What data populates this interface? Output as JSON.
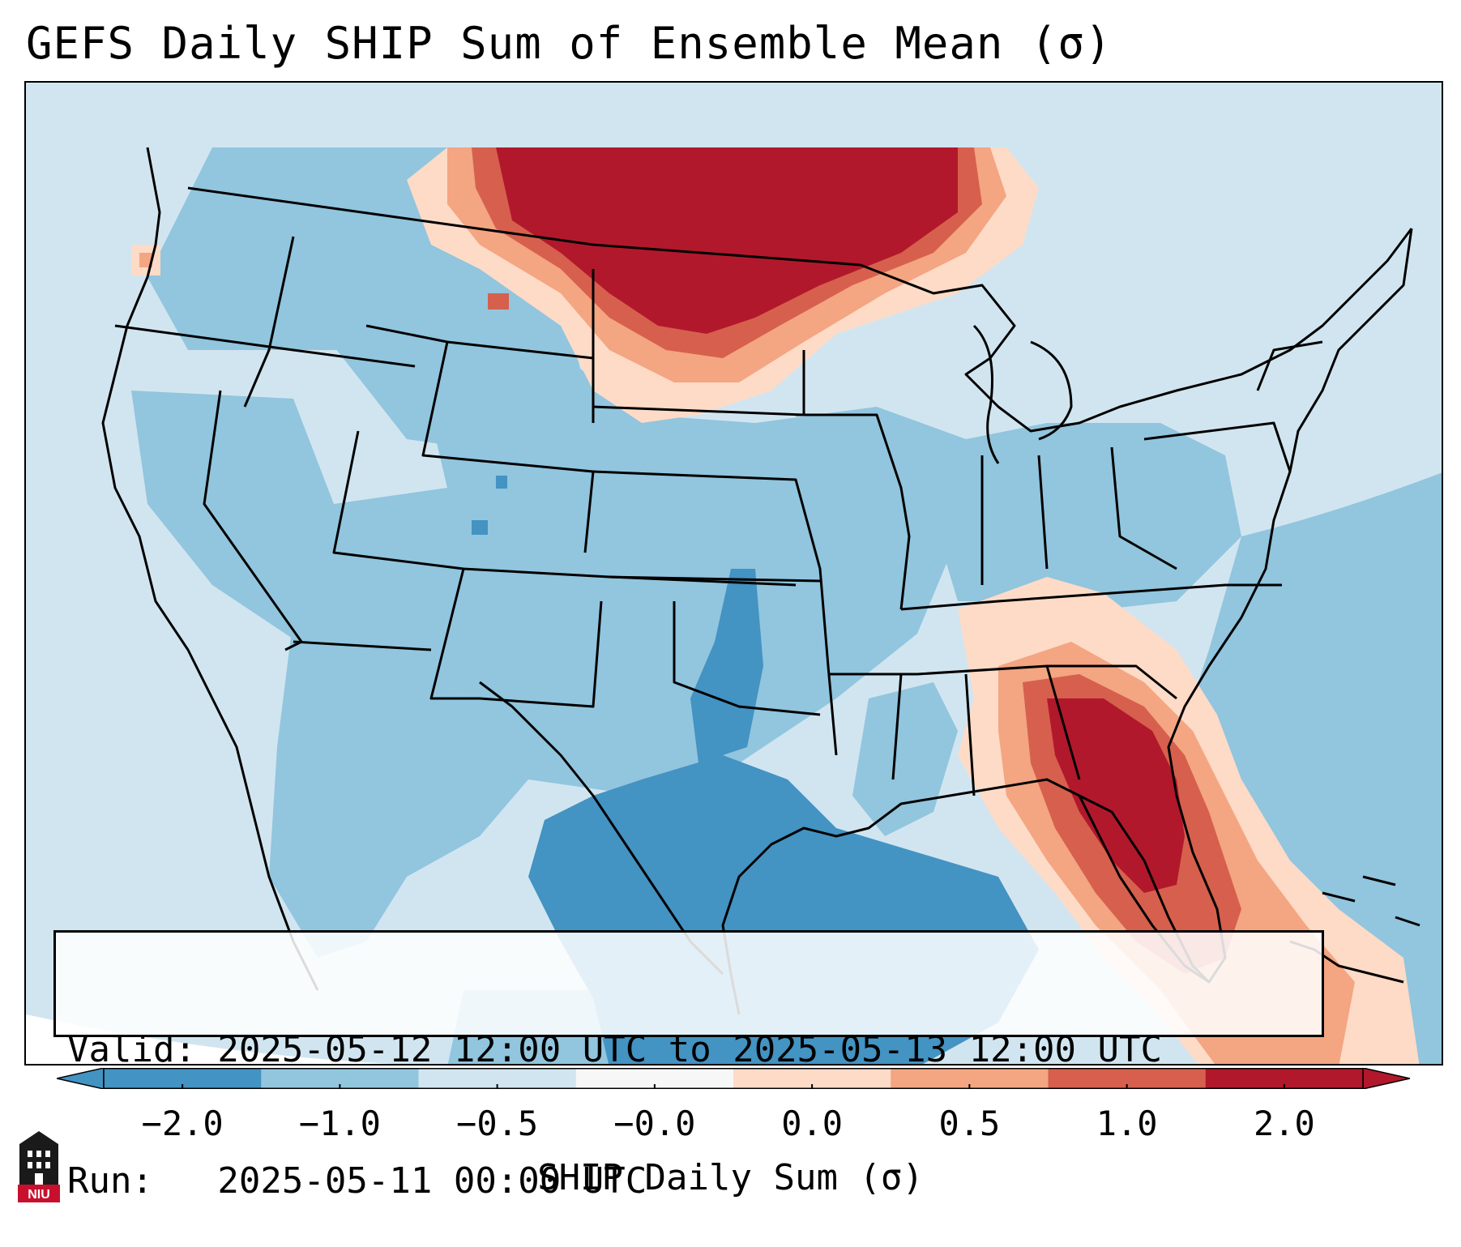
{
  "title": "GEFS Daily SHIP Sum of Ensemble Mean (σ)",
  "info": {
    "valid_line": "Valid: 2025-05-12 12:00 UTC to 2025-05-13 12:00 UTC",
    "run_line": "Run:   2025-05-11 00:00 UTC"
  },
  "colorbar": {
    "label": "SHIP Daily Sum (σ)",
    "tick_labels": [
      "−2.0",
      "−1.0",
      "−0.5",
      "−0.0",
      "0.0",
      "0.5",
      "1.0",
      "2.0"
    ],
    "colors": [
      "#4393c3",
      "#92c5de",
      "#d1e5f0",
      "#f7f7f7",
      "#fddbc7",
      "#f4a582",
      "#d6604d",
      "#b2182b"
    ],
    "extend": "both"
  },
  "logo": {
    "text": "NIU"
  },
  "map": {
    "region": "Contiguous United States",
    "field_colors": {
      "strong_negative": "#4393c3",
      "negative": "#92c5de",
      "near_zero_negative": "#d1e5f0",
      "slight_positive": "#fddbc7",
      "positive": "#f4a582",
      "high_positive": "#d6604d",
      "very_high_positive": "#b2182b"
    }
  }
}
